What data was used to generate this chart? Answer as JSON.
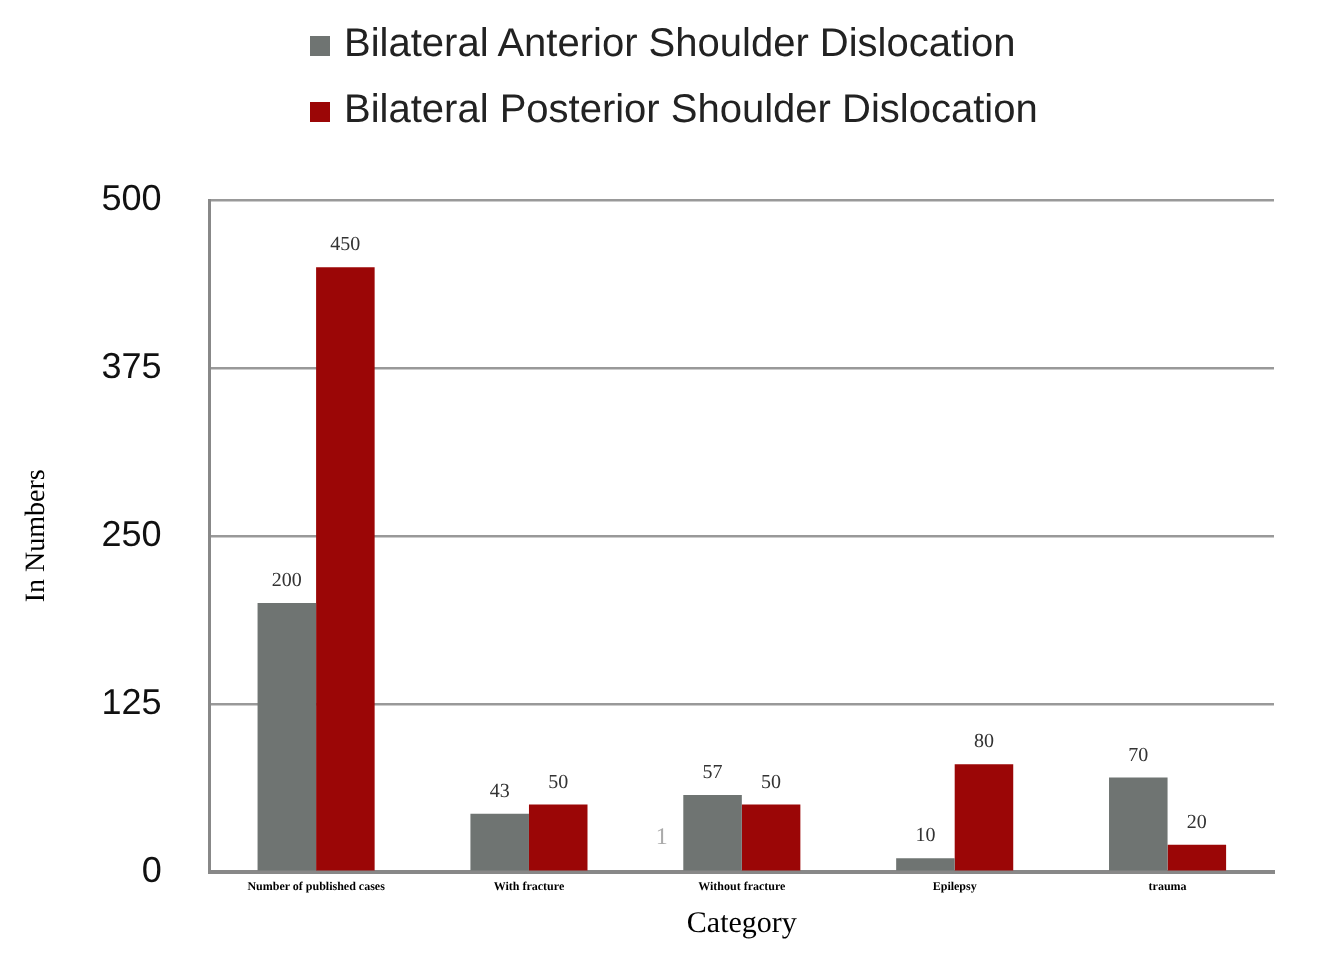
{
  "chart_data": {
    "type": "bar",
    "xlabel": "Category",
    "ylabel": "In Numbers",
    "categories": [
      "Number of published cases",
      "With fracture",
      "Without fracture",
      "Epilepsy",
      "trauma"
    ],
    "series": [
      {
        "name": "Bilateral Anterior Shoulder Dislocation",
        "color": "#6f7472",
        "values": [
          200,
          43,
          57,
          10,
          70
        ]
      },
      {
        "name": "Bilateral Posterior Shoulder Dislocation",
        "color": "#9b0606",
        "values": [
          450,
          50,
          50,
          80,
          20
        ]
      }
    ],
    "ylim": [
      0,
      500
    ],
    "yticks": [
      0,
      125,
      250,
      375,
      500
    ],
    "grid": "y",
    "legend": "top",
    "data_labels": true,
    "annotations": [
      "1"
    ]
  }
}
